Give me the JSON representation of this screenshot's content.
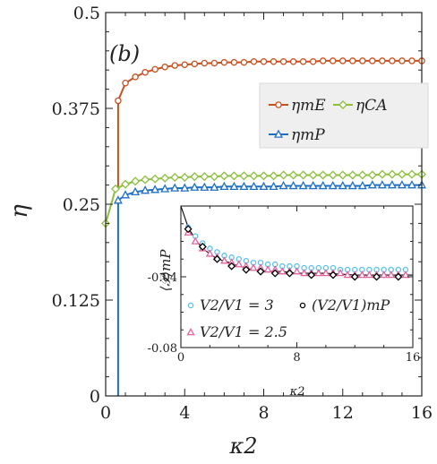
{
  "chart_data": [
    {
      "type": "line",
      "panel_label": "(b)",
      "xlabel": "κ2",
      "ylabel": "η",
      "xlim": [
        0,
        16
      ],
      "ylim": [
        0,
        0.5
      ],
      "xticks": [
        "0",
        "4",
        "8",
        "12",
        "16"
      ],
      "yticks": [
        "0",
        "0.125",
        "0.25",
        "0.375",
        "0.5"
      ],
      "legend": {
        "placement": "top-right",
        "entries": [
          {
            "label": "ηmE",
            "color": "#c8501e",
            "marker": "circle"
          },
          {
            "label": "ηCA",
            "color": "#8cbf3c",
            "marker": "diamond"
          },
          {
            "label": "ηmP",
            "color": "#1f6fc5",
            "marker": "triangle"
          }
        ]
      },
      "series": [
        {
          "name": "ηmE",
          "color": "#c8501e",
          "marker": "circle",
          "x": [
            0.63,
            0.63,
            1.0,
            1.5,
            2.0,
            2.5,
            3.0,
            3.5,
            4.0,
            4.5,
            5.0,
            5.5,
            6.0,
            6.5,
            7.0,
            7.5,
            8.0,
            8.5,
            9.0,
            9.5,
            10.0,
            10.5,
            11.0,
            11.5,
            12.0,
            12.5,
            13.0,
            13.5,
            14.0,
            14.5,
            15.0,
            15.5,
            16.0
          ],
          "y": [
            0.27,
            0.385,
            0.408,
            0.416,
            0.422,
            0.426,
            0.429,
            0.431,
            0.432,
            0.433,
            0.434,
            0.434,
            0.435,
            0.435,
            0.435,
            0.436,
            0.436,
            0.436,
            0.436,
            0.436,
            0.436,
            0.436,
            0.437,
            0.437,
            0.437,
            0.437,
            0.437,
            0.437,
            0.437,
            0.437,
            0.437,
            0.437,
            0.437
          ]
        },
        {
          "name": "ηCA",
          "color": "#8cbf3c",
          "marker": "diamond",
          "x": [
            0.0,
            0.5,
            1.0,
            1.5,
            2.0,
            2.5,
            3.0,
            3.5,
            4.0,
            4.5,
            5.0,
            5.5,
            6.0,
            6.5,
            7.0,
            7.5,
            8.0,
            8.5,
            9.0,
            9.5,
            10.0,
            10.5,
            11.0,
            11.5,
            12.0,
            12.5,
            13.0,
            13.5,
            14.0,
            14.5,
            15.0,
            15.5,
            16.0
          ],
          "y": [
            0.225,
            0.27,
            0.276,
            0.28,
            0.282,
            0.283,
            0.284,
            0.285,
            0.285,
            0.286,
            0.286,
            0.286,
            0.287,
            0.287,
            0.287,
            0.287,
            0.287,
            0.287,
            0.288,
            0.288,
            0.288,
            0.288,
            0.288,
            0.288,
            0.288,
            0.288,
            0.288,
            0.288,
            0.289,
            0.289,
            0.289,
            0.289,
            0.289
          ]
        },
        {
          "name": "ηmP",
          "color": "#1f6fc5",
          "marker": "triangle",
          "x": [
            0.63,
            0.63,
            1.0,
            1.5,
            2.0,
            2.5,
            3.0,
            3.5,
            4.0,
            4.5,
            5.0,
            5.5,
            6.0,
            6.5,
            7.0,
            7.5,
            8.0,
            8.5,
            9.0,
            9.5,
            10.0,
            10.5,
            11.0,
            11.5,
            12.0,
            12.5,
            13.0,
            13.5,
            14.0,
            14.5,
            15.0,
            15.5,
            16.0
          ],
          "y": [
            0.0,
            0.255,
            0.262,
            0.266,
            0.268,
            0.269,
            0.27,
            0.271,
            0.271,
            0.272,
            0.272,
            0.272,
            0.273,
            0.273,
            0.273,
            0.273,
            0.273,
            0.273,
            0.274,
            0.274,
            0.274,
            0.274,
            0.274,
            0.274,
            0.274,
            0.274,
            0.274,
            0.275,
            0.275,
            0.275,
            0.275,
            0.275,
            0.275
          ]
        }
      ]
    },
    {
      "type": "scatter",
      "xlabel": "κ2",
      "ylabel": "⟨𝒫⟩mP",
      "xlim": [
        0,
        16
      ],
      "ylim": [
        -0.08,
        0
      ],
      "xticks": [
        "0",
        "8",
        "16"
      ],
      "yticks": [
        "-0.04",
        "-0.08"
      ],
      "legend": {
        "placement": "bottom",
        "entries": [
          {
            "label": "V2/V1 = 3",
            "color": "#5bc0e8",
            "marker": "circle-open"
          },
          {
            "label": "(V2/V1)mP",
            "color": "#000000",
            "marker": "circle-open"
          },
          {
            "label": "V2/V1 = 2.5",
            "color": "#e8609c",
            "marker": "triangle-open"
          }
        ]
      },
      "series": [
        {
          "name": "V2/V1 = 3",
          "color": "#5bc0e8",
          "marker": "circle",
          "x": [
            0.5,
            1.0,
            1.5,
            2.0,
            2.5,
            3.0,
            3.5,
            4.0,
            4.5,
            5.0,
            5.5,
            6.0,
            6.5,
            7.0,
            7.5,
            8.0,
            8.5,
            9.0,
            9.5,
            10.0,
            10.5,
            11.0,
            11.5,
            12.0,
            12.5,
            13.0,
            13.5,
            14.0,
            14.5,
            15.0,
            15.5
          ],
          "y": [
            -0.012,
            -0.017,
            -0.021,
            -0.024,
            -0.026,
            -0.028,
            -0.029,
            -0.03,
            -0.031,
            -0.032,
            -0.032,
            -0.033,
            -0.033,
            -0.034,
            -0.034,
            -0.034,
            -0.035,
            -0.035,
            -0.035,
            -0.035,
            -0.035,
            -0.036,
            -0.036,
            -0.036,
            -0.036,
            -0.036,
            -0.036,
            -0.036,
            -0.036,
            -0.036,
            -0.036
          ]
        },
        {
          "name": "V2/V1 = 2.5",
          "color": "#e8609c",
          "marker": "triangle",
          "x": [
            0.5,
            1.0,
            1.5,
            2.0,
            2.5,
            3.0,
            3.5,
            4.0,
            4.5,
            5.0,
            5.5,
            6.0,
            6.5,
            7.0,
            7.5,
            8.0,
            8.5,
            9.0,
            9.5,
            10.0,
            10.5,
            11.0,
            11.5,
            12.0,
            12.5,
            13.0,
            13.5,
            14.0,
            14.5,
            15.0,
            15.5
          ],
          "y": [
            -0.015,
            -0.02,
            -0.024,
            -0.027,
            -0.029,
            -0.031,
            -0.032,
            -0.033,
            -0.034,
            -0.035,
            -0.035,
            -0.036,
            -0.036,
            -0.037,
            -0.037,
            -0.037,
            -0.038,
            -0.038,
            -0.038,
            -0.038,
            -0.038,
            -0.038,
            -0.039,
            -0.039,
            -0.039,
            -0.039,
            -0.039,
            -0.039,
            -0.039,
            -0.039,
            -0.039
          ]
        },
        {
          "name": "(V2/V1)mP",
          "color": "#000000",
          "marker": "diamond",
          "x": [
            0.5,
            1.5,
            2.5,
            3.5,
            4.5,
            5.5,
            6.5,
            7.5,
            9.0,
            10.5,
            12.0,
            13.5,
            15.0
          ],
          "y": [
            -0.013,
            -0.023,
            -0.03,
            -0.034,
            -0.036,
            -0.037,
            -0.038,
            -0.038,
            -0.039,
            -0.039,
            -0.04,
            -0.04,
            -0.04
          ]
        },
        {
          "name": "fit",
          "color": "#000000",
          "marker": "none",
          "x": [
            0.0,
            0.5,
            1.0,
            1.5,
            2.0,
            2.5,
            3.0,
            4.0,
            5.0,
            6.0,
            7.0,
            8.0,
            10.0,
            12.0,
            14.0,
            16.0
          ],
          "y": [
            0.0,
            -0.012,
            -0.019,
            -0.024,
            -0.027,
            -0.03,
            -0.031,
            -0.034,
            -0.036,
            -0.037,
            -0.037,
            -0.038,
            -0.038,
            -0.039,
            -0.039,
            -0.039
          ]
        }
      ]
    }
  ]
}
